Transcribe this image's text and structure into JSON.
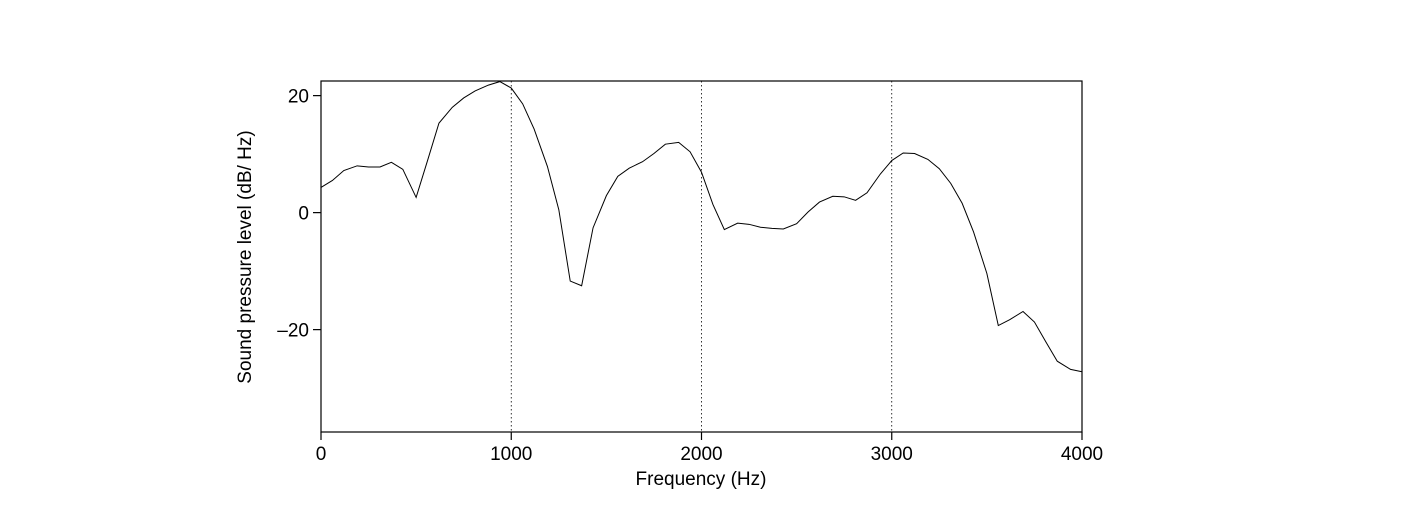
{
  "chart_data": {
    "type": "line",
    "title": "",
    "xlabel": "Frequency (Hz)",
    "ylabel": "Sound pressure level (dB/ Hz)",
    "xlim": [
      0,
      4000
    ],
    "ylim": [
      -37.5,
      22.5
    ],
    "xticks": [
      0,
      1000,
      2000,
      3000,
      4000
    ],
    "xtick_labels": [
      "0",
      "1000",
      "2000",
      "3000",
      "4000"
    ],
    "yticks": [
      20,
      0,
      -20
    ],
    "ytick_labels": [
      "20",
      "0",
      "–20"
    ],
    "grid_x": [
      1000,
      2000,
      3000
    ],
    "series": [
      {
        "x": [
          0,
          60,
          120,
          190,
          250,
          310,
          370,
          430,
          500,
          560,
          620,
          690,
          750,
          810,
          880,
          940,
          1000,
          1060,
          1120,
          1190,
          1250,
          1310,
          1370,
          1430,
          1500,
          1560,
          1620,
          1690,
          1750,
          1810,
          1880,
          1940,
          2000,
          2060,
          2120,
          2190,
          2250,
          2310,
          2370,
          2430,
          2500,
          2560,
          2620,
          2690,
          2750,
          2810,
          2870,
          2940,
          3000,
          3060,
          3120,
          3190,
          3250,
          3310,
          3370,
          3430,
          3500,
          3560,
          3620,
          3690,
          3750,
          3810,
          3870,
          3940,
          4000
        ],
        "y": [
          4.3,
          5.5,
          7.2,
          8.0,
          7.8,
          7.8,
          8.6,
          7.4,
          2.6,
          8.9,
          15.3,
          18.0,
          19.6,
          20.8,
          21.8,
          22.4,
          21.3,
          18.6,
          14.3,
          7.9,
          0.5,
          -11.7,
          -12.5,
          -2.6,
          2.9,
          6.2,
          7.6,
          8.7,
          10.1,
          11.7,
          12.0,
          10.4,
          6.9,
          1.4,
          -2.9,
          -1.8,
          -2.0,
          -2.5,
          -2.7,
          -2.8,
          -1.9,
          0.1,
          1.8,
          2.8,
          2.7,
          2.1,
          3.4,
          6.6,
          8.9,
          10.2,
          10.1,
          9.1,
          7.5,
          5.0,
          1.6,
          -3.3,
          -10.4,
          -19.3,
          -18.3,
          -16.9,
          -18.7,
          -22.1,
          -25.4,
          -26.8,
          -27.2
        ]
      }
    ]
  }
}
